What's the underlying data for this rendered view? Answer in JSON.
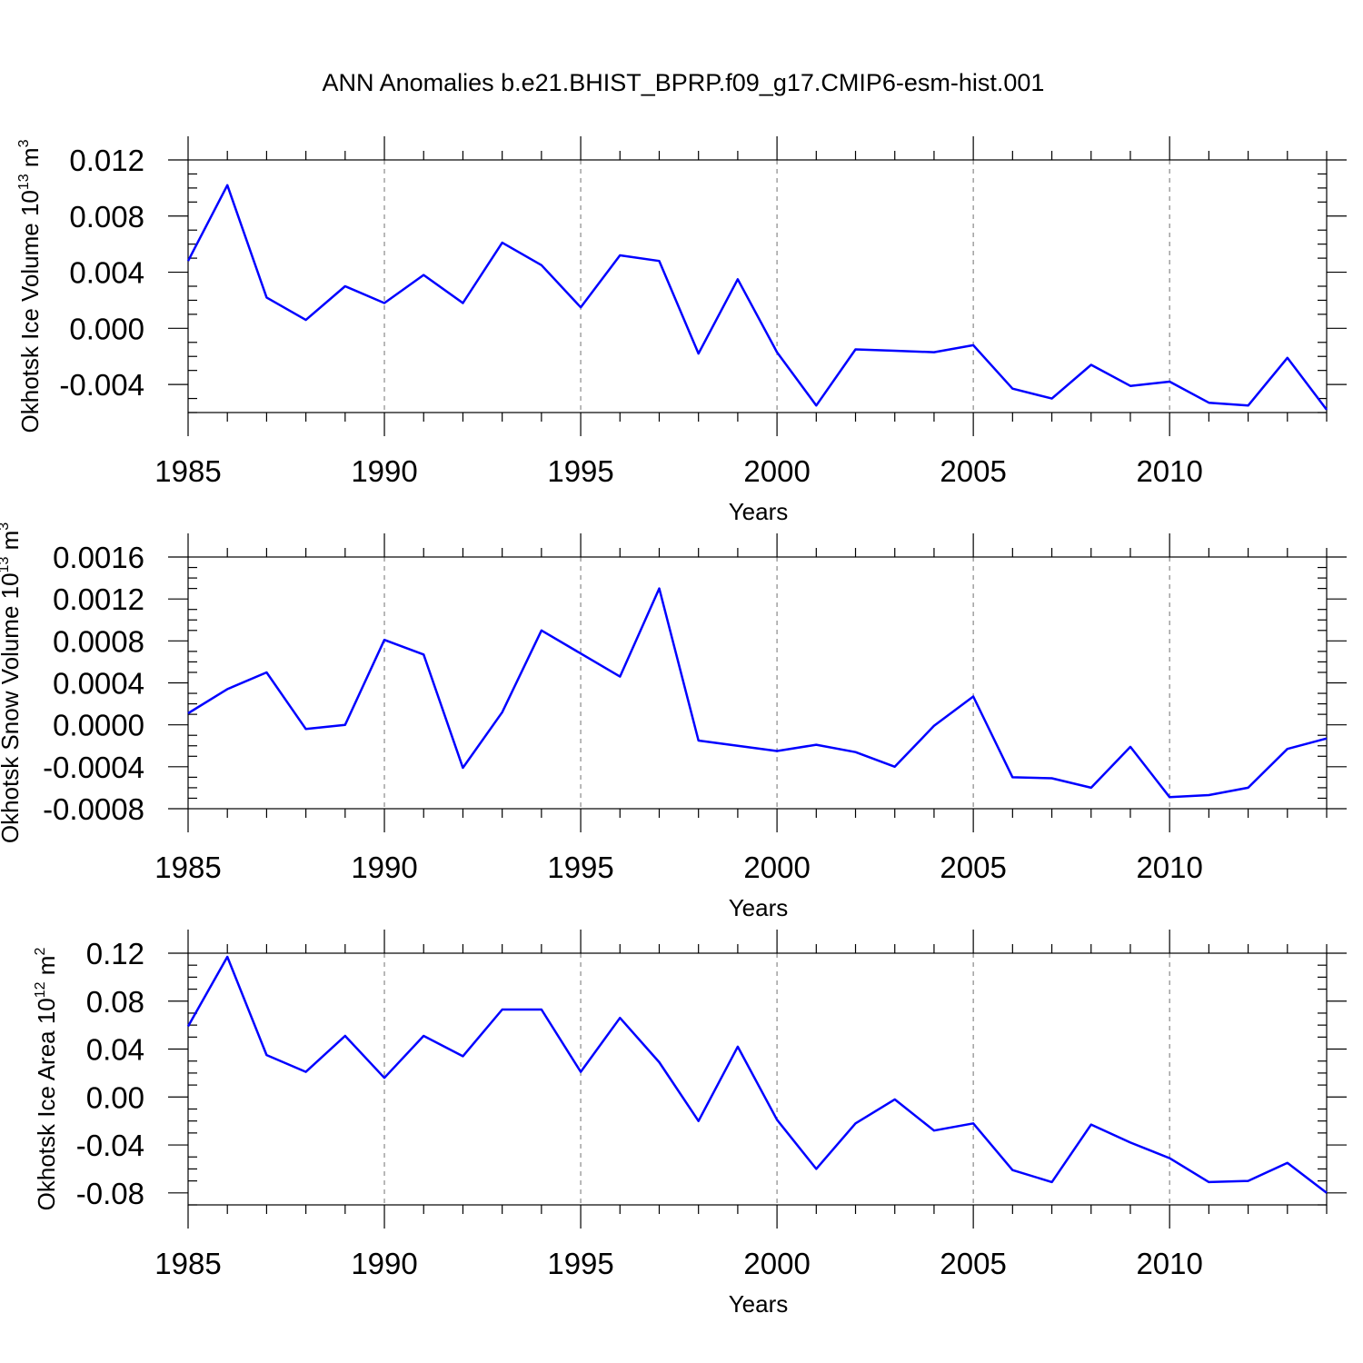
{
  "title": "ANN Anomalies b.e21.BHIST_BPRP.f09_g17.CMIP6-esm-hist.001",
  "colors": {
    "series": "#0000ff",
    "grid": "#8a8a8a",
    "axis": "#000000"
  },
  "chart_data": [
    {
      "type": "line",
      "ylabel": {
        "main": "Okhotsk Ice Volume 10",
        "exp": "13",
        "unit": " m",
        "unit_exp": "3"
      },
      "xlabel": "Years",
      "xlim": [
        1985,
        2014
      ],
      "ylim": [
        -0.006,
        0.012
      ],
      "xticks": [
        "1985",
        "1990",
        "1995",
        "2000",
        "2005",
        "2010"
      ],
      "xtick_values": [
        1985,
        1990,
        1995,
        2000,
        2005,
        2010
      ],
      "yticks": [
        "0.012",
        "0.008",
        "0.004",
        "0.000",
        "-0.004"
      ],
      "ytick_values": [
        0.012,
        0.008,
        0.004,
        0.0,
        -0.004
      ],
      "minor_step": 0.001,
      "grid": "vertical dashed at major x ticks",
      "series": [
        {
          "x": [
            1985,
            1986,
            1987,
            1988,
            1989,
            1990,
            1991,
            1992,
            1993,
            1994,
            1995,
            1996,
            1997,
            1998,
            1999,
            2000,
            2001,
            2002,
            2003,
            2004,
            2005,
            2006,
            2007,
            2008,
            2009,
            2010,
            2011,
            2012,
            2013,
            2014
          ],
          "values": [
            0.0048,
            0.0102,
            0.0022,
            0.0006,
            0.003,
            0.0018,
            0.0038,
            0.0018,
            0.0061,
            0.0045,
            0.0015,
            0.0052,
            0.0048,
            -0.0018,
            0.0035,
            -0.0017,
            -0.0055,
            -0.0015,
            -0.0016,
            -0.0017,
            -0.0012,
            -0.0043,
            -0.005,
            -0.0026,
            -0.0041,
            -0.0038,
            -0.0053,
            -0.0055,
            -0.0021,
            -0.0058
          ]
        }
      ]
    },
    {
      "type": "line",
      "ylabel": {
        "main": "Okhotsk Snow Volume 10",
        "exp": "13",
        "unit": " m",
        "unit_exp": "3"
      },
      "xlabel": "Years",
      "xlim": [
        1985,
        2014
      ],
      "ylim": [
        -0.0008,
        0.0016
      ],
      "xticks": [
        "1985",
        "1990",
        "1995",
        "2000",
        "2005",
        "2010"
      ],
      "xtick_values": [
        1985,
        1990,
        1995,
        2000,
        2005,
        2010
      ],
      "yticks": [
        "0.0016",
        "0.0012",
        "0.0008",
        "0.0004",
        "0.0000",
        "-0.0004",
        "-0.0008"
      ],
      "ytick_values": [
        0.0016,
        0.0012,
        0.0008,
        0.0004,
        0.0,
        -0.0004,
        -0.0008
      ],
      "minor_step": 0.0001,
      "grid": "vertical dashed at major x ticks",
      "series": [
        {
          "x": [
            1985,
            1986,
            1987,
            1988,
            1989,
            1990,
            1991,
            1992,
            1993,
            1994,
            1995,
            1996,
            1997,
            1998,
            1999,
            2000,
            2001,
            2002,
            2003,
            2004,
            2005,
            2006,
            2007,
            2008,
            2009,
            2010,
            2011,
            2012,
            2013,
            2014
          ],
          "values": [
            0.00011,
            0.00034,
            0.0005,
            -4e-05,
            0.0,
            0.00081,
            0.00067,
            -0.00041,
            0.00012,
            0.0009,
            0.00068,
            0.00046,
            0.0013,
            -0.00015,
            -0.0002,
            -0.00025,
            -0.00019,
            -0.00026,
            -0.0004,
            -1e-05,
            0.00027,
            -0.0005,
            -0.00051,
            -0.0006,
            -0.00021,
            -0.00069,
            -0.00067,
            -0.0006,
            -0.00023,
            -0.00013
          ]
        }
      ]
    },
    {
      "type": "line",
      "ylabel": {
        "main": "Okhotsk Ice Area 10",
        "exp": "12",
        "unit": " m",
        "unit_exp": "2"
      },
      "xlabel": "Years",
      "xlim": [
        1985,
        2014
      ],
      "ylim": [
        -0.09,
        0.12
      ],
      "xticks": [
        "1985",
        "1990",
        "1995",
        "2000",
        "2005",
        "2010"
      ],
      "xtick_values": [
        1985,
        1990,
        1995,
        2000,
        2005,
        2010
      ],
      "yticks": [
        "0.12",
        "0.08",
        "0.04",
        "0.00",
        "-0.04",
        "-0.08"
      ],
      "ytick_values": [
        0.12,
        0.08,
        0.04,
        0.0,
        -0.04,
        -0.08
      ],
      "minor_step": 0.01,
      "grid": "vertical dashed at major x ticks",
      "series": [
        {
          "x": [
            1985,
            1986,
            1987,
            1988,
            1989,
            1990,
            1991,
            1992,
            1993,
            1994,
            1995,
            1996,
            1997,
            1998,
            1999,
            2000,
            2001,
            2002,
            2003,
            2004,
            2005,
            2006,
            2007,
            2008,
            2009,
            2010,
            2011,
            2012,
            2013,
            2014
          ],
          "values": [
            0.059,
            0.117,
            0.035,
            0.021,
            0.051,
            0.016,
            0.051,
            0.034,
            0.073,
            0.073,
            0.021,
            0.066,
            0.029,
            -0.02,
            0.042,
            -0.019,
            -0.06,
            -0.022,
            -0.002,
            -0.028,
            -0.022,
            -0.061,
            -0.071,
            -0.023,
            -0.038,
            -0.051,
            -0.071,
            -0.07,
            -0.055,
            -0.08
          ]
        }
      ]
    }
  ]
}
